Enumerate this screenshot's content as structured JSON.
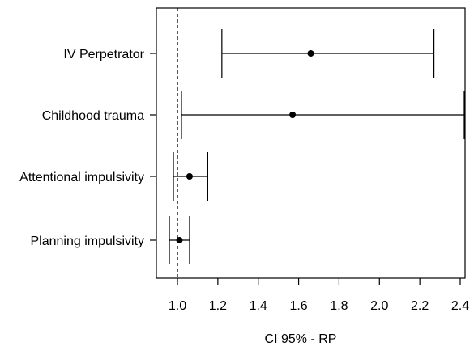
{
  "chart_data": {
    "type": "forest",
    "title": "",
    "xlabel": "CI 95% - RP",
    "ylabel": "",
    "xlim": [
      0.95,
      2.5
    ],
    "x_ticks": [
      1.0,
      1.2,
      1.4,
      1.6,
      1.8,
      2.0,
      2.2,
      2.4
    ],
    "x_tick_labels": [
      "1.0",
      "1.2",
      "1.4",
      "1.6",
      "1.8",
      "2.0",
      "2.2",
      "2.4"
    ],
    "reference_line": 1.0,
    "grid": false,
    "categories": [
      "IV Perpetrator",
      "Childhood trauma",
      "Attentional impulsivity",
      "Planning impulsivity"
    ],
    "estimates": [
      1.66,
      1.57,
      1.06,
      1.01
    ],
    "lower": [
      1.22,
      1.02,
      0.98,
      0.96
    ],
    "upper": [
      2.27,
      2.42,
      1.15,
      1.06
    ]
  },
  "colors": {
    "ink": "#000000",
    "background": "#ffffff"
  }
}
